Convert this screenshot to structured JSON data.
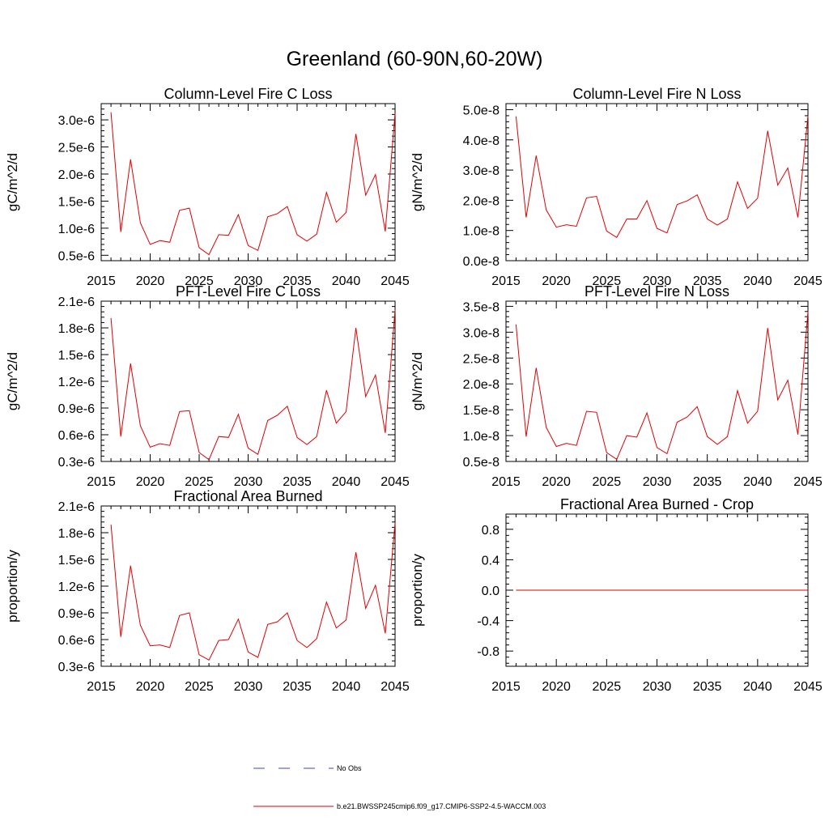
{
  "page_title": "Greenland (60-90N,60-20W)",
  "legend": {
    "obs_label": "No Obs",
    "obs_color": "#3b4a9e",
    "model_label": "b.e21.BWSSP245cmip6.f09_g17.CMIP6-SSP2-4.5-WACCM.003",
    "model_color": "#e00000"
  },
  "chart_data": [
    {
      "type": "line",
      "title": "Column-Level Fire C Loss",
      "xlabel": "",
      "ylabel": "gC/m^2/d",
      "xlim": [
        2015,
        2045
      ],
      "ylim": [
        4e-07,
        3.3e-06
      ],
      "xticks": [
        2015,
        2020,
        2025,
        2030,
        2035,
        2040,
        2045
      ],
      "xtick_labels": [
        "2015",
        "2020",
        "2025",
        "2030",
        "2035",
        "2040",
        "2045"
      ],
      "yticks": [
        5e-07,
        1e-06,
        1.5e-06,
        2e-06,
        2.5e-06,
        3e-06
      ],
      "ytick_labels": [
        "0.5e-6",
        "1.0e-6",
        "1.5e-6",
        "2.0e-6",
        "2.5e-6",
        "3.0e-6"
      ],
      "series": [
        {
          "name": "b.e21.BWSSP245cmip6.f09_g17.CMIP6-SSP2-4.5-WACCM.003",
          "x": [
            2016,
            2017,
            2018,
            2019,
            2020,
            2021,
            2022,
            2023,
            2024,
            2025,
            2026,
            2027,
            2028,
            2029,
            2030,
            2031,
            2032,
            2033,
            2034,
            2035,
            2036,
            2037,
            2038,
            2039,
            2040,
            2041,
            2042,
            2043,
            2044,
            2045
          ],
          "values": [
            3.14e-06,
            9.3e-07,
            2.27e-06,
            1.1e-06,
            7e-07,
            7.7e-07,
            7.4e-07,
            1.33e-06,
            1.37e-06,
            6.4e-07,
            5.1e-07,
            8.8e-07,
            8.7e-07,
            1.25e-06,
            6.8e-07,
            5.9e-07,
            1.21e-06,
            1.27e-06,
            1.4e-06,
            8.8e-07,
            7.6e-07,
            8.9e-07,
            1.66e-06,
            1.11e-06,
            1.29e-06,
            2.74e-06,
            1.61e-06,
            1.99e-06,
            9.4e-07,
            3.12e-06
          ]
        }
      ]
    },
    {
      "type": "line",
      "title": "Column-Level Fire N Loss",
      "xlabel": "",
      "ylabel": "gN/m^2/d",
      "xlim": [
        2015,
        2045
      ],
      "ylim": [
        0.0,
        5.2e-08
      ],
      "xticks": [
        2015,
        2020,
        2025,
        2030,
        2035,
        2040,
        2045
      ],
      "xtick_labels": [
        "2015",
        "2020",
        "2025",
        "2030",
        "2035",
        "2040",
        "2045"
      ],
      "yticks": [
        0.0,
        1e-08,
        2e-08,
        3e-08,
        4e-08,
        5e-08
      ],
      "ytick_labels": [
        "0.0e-8",
        "1.0e-8",
        "2.0e-8",
        "3.0e-8",
        "4.0e-8",
        "5.0e-8"
      ],
      "series": [
        {
          "name": "b.e21.BWSSP245cmip6.f09_g17.CMIP6-SSP2-4.5-WACCM.003",
          "x": [
            2016,
            2017,
            2018,
            2019,
            2020,
            2021,
            2022,
            2023,
            2024,
            2025,
            2026,
            2027,
            2028,
            2029,
            2030,
            2031,
            2032,
            2033,
            2034,
            2035,
            2036,
            2037,
            2038,
            2039,
            2040,
            2041,
            2042,
            2043,
            2044,
            2045
          ],
          "values": [
            4.78e-08,
            1.43e-08,
            3.48e-08,
            1.68e-08,
            1.11e-08,
            1.19e-08,
            1.14e-08,
            2.08e-08,
            2.13e-08,
            9.8e-09,
            7.7e-09,
            1.38e-08,
            1.38e-08,
            1.99e-08,
            1.07e-08,
            9.2e-09,
            1.86e-08,
            1.98e-08,
            2.18e-08,
            1.38e-08,
            1.18e-08,
            1.38e-08,
            2.61e-08,
            1.73e-08,
            2.07e-08,
            4.3e-08,
            2.5e-08,
            3.07e-08,
            1.43e-08,
            4.8e-08
          ]
        }
      ]
    },
    {
      "type": "line",
      "title": "PFT-Level Fire C Loss",
      "xlabel": "",
      "ylabel": "gC/m^2/d",
      "xlim": [
        2015,
        2045
      ],
      "ylim": [
        3e-07,
        2.1e-06
      ],
      "xticks": [
        2015,
        2020,
        2025,
        2030,
        2035,
        2040,
        2045
      ],
      "xtick_labels": [
        "2015",
        "2020",
        "2025",
        "2030",
        "2035",
        "2040",
        "2045"
      ],
      "yticks": [
        3e-07,
        6e-07,
        9e-07,
        1.2e-06,
        1.5e-06,
        1.8e-06,
        2.1e-06
      ],
      "ytick_labels": [
        "0.3e-6",
        "0.6e-6",
        "0.9e-6",
        "1.2e-6",
        "1.5e-6",
        "1.8e-6",
        "2.1e-6"
      ],
      "series": [
        {
          "name": "b.e21.BWSSP245cmip6.f09_g17.CMIP6-SSP2-4.5-WACCM.003",
          "x": [
            2016,
            2017,
            2018,
            2019,
            2020,
            2021,
            2022,
            2023,
            2024,
            2025,
            2026,
            2027,
            2028,
            2029,
            2030,
            2031,
            2032,
            2033,
            2034,
            2035,
            2036,
            2037,
            2038,
            2039,
            2040,
            2041,
            2042,
            2043,
            2044,
            2045
          ],
          "values": [
            1.91e-06,
            5.8e-07,
            1.4e-06,
            7e-07,
            4.6e-07,
            5e-07,
            4.8e-07,
            8.6e-07,
            8.7e-07,
            4e-07,
            3.2e-07,
            5.8e-07,
            5.7e-07,
            8.3e-07,
            4.5e-07,
            3.8e-07,
            7.6e-07,
            8.2e-07,
            9.2e-07,
            5.7e-07,
            4.9e-07,
            5.8e-07,
            1.1e-06,
            7.3e-07,
            8.6e-07,
            1.8e-06,
            1.03e-06,
            1.27e-06,
            6.2e-07,
            2e-06
          ]
        }
      ]
    },
    {
      "type": "line",
      "title": "PFT-Level Fire N Loss",
      "xlabel": "",
      "ylabel": "gN/m^2/d",
      "xlim": [
        2015,
        2045
      ],
      "ylim": [
        5e-09,
        3.6e-08
      ],
      "xticks": [
        2015,
        2020,
        2025,
        2030,
        2035,
        2040,
        2045
      ],
      "xtick_labels": [
        "2015",
        "2020",
        "2025",
        "2030",
        "2035",
        "2040",
        "2045"
      ],
      "yticks": [
        5e-09,
        1e-08,
        1.5e-08,
        2e-08,
        2.5e-08,
        3e-08,
        3.5e-08
      ],
      "ytick_labels": [
        "0.5e-8",
        "1.0e-8",
        "1.5e-8",
        "2.0e-8",
        "2.5e-8",
        "3.0e-8",
        "3.5e-8"
      ],
      "series": [
        {
          "name": "b.e21.BWSSP245cmip6.f09_g17.CMIP6-SSP2-4.5-WACCM.003",
          "x": [
            2016,
            2017,
            2018,
            2019,
            2020,
            2021,
            2022,
            2023,
            2024,
            2025,
            2026,
            2027,
            2028,
            2029,
            2030,
            2031,
            2032,
            2033,
            2034,
            2035,
            2036,
            2037,
            2038,
            2039,
            2040,
            2041,
            2042,
            2043,
            2044,
            2045
          ],
          "values": [
            3.15e-08,
            9.8e-09,
            2.31e-08,
            1.16e-08,
            7.9e-09,
            8.5e-09,
            8.1e-09,
            1.47e-08,
            1.45e-08,
            6.7e-09,
            5.4e-09,
            1e-08,
            9.7e-09,
            1.44e-08,
            7.7e-09,
            6.5e-09,
            1.26e-08,
            1.36e-08,
            1.56e-08,
            9.8e-09,
            8.3e-09,
            9.8e-09,
            1.87e-08,
            1.24e-08,
            1.47e-08,
            3.08e-08,
            1.69e-08,
            2.07e-08,
            1.02e-08,
            3.4e-08
          ]
        }
      ]
    },
    {
      "type": "line",
      "title": "Fractional Area Burned",
      "xlabel": "",
      "ylabel": "proportion/y",
      "xlim": [
        2015,
        2045
      ],
      "ylim": [
        3e-07,
        2.1e-06
      ],
      "xticks": [
        2015,
        2020,
        2025,
        2030,
        2035,
        2040,
        2045
      ],
      "xtick_labels": [
        "2015",
        "2020",
        "2025",
        "2030",
        "2035",
        "2040",
        "2045"
      ],
      "yticks": [
        3e-07,
        6e-07,
        9e-07,
        1.2e-06,
        1.5e-06,
        1.8e-06,
        2.1e-06
      ],
      "ytick_labels": [
        "0.3e-6",
        "0.6e-6",
        "0.9e-6",
        "1.2e-6",
        "1.5e-6",
        "1.8e-6",
        "2.1e-6"
      ],
      "series": [
        {
          "name": "b.e21.BWSSP245cmip6.f09_g17.CMIP6-SSP2-4.5-WACCM.003",
          "x": [
            2016,
            2017,
            2018,
            2019,
            2020,
            2021,
            2022,
            2023,
            2024,
            2025,
            2026,
            2027,
            2028,
            2029,
            2030,
            2031,
            2032,
            2033,
            2034,
            2035,
            2036,
            2037,
            2038,
            2039,
            2040,
            2041,
            2042,
            2043,
            2044,
            2045
          ],
          "values": [
            1.89e-06,
            6.3e-07,
            1.43e-06,
            7.6e-07,
            5.3e-07,
            5.4e-07,
            5.1e-07,
            8.7e-07,
            9e-07,
            4.3e-07,
            3.7e-07,
            5.9e-07,
            6e-07,
            8.3e-07,
            4.6e-07,
            4e-07,
            7.7e-07,
            8e-07,
            9e-07,
            5.9e-07,
            5.1e-07,
            6.1e-07,
            1.02e-06,
            7.3e-07,
            8.2e-07,
            1.58e-06,
            9.5e-07,
            1.21e-06,
            6.7e-07,
            1.91e-06
          ]
        }
      ]
    },
    {
      "type": "line",
      "title": "Fractional Area Burned - Crop",
      "xlabel": "",
      "ylabel": "proportion/y",
      "xlim": [
        2015,
        2045
      ],
      "ylim": [
        -1.0,
        1.0
      ],
      "xticks": [
        2015,
        2020,
        2025,
        2030,
        2035,
        2040,
        2045
      ],
      "xtick_labels": [
        "2015",
        "2020",
        "2025",
        "2030",
        "2035",
        "2040",
        "2045"
      ],
      "yticks": [
        -0.8,
        -0.4,
        0.0,
        0.4,
        0.8
      ],
      "ytick_labels": [
        "-0.8",
        "-0.4",
        "0.0",
        "0.4",
        "0.8"
      ],
      "series": [
        {
          "name": "b.e21.BWSSP245cmip6.f09_g17.CMIP6-SSP2-4.5-WACCM.003",
          "x": [
            2016,
            2017,
            2018,
            2019,
            2020,
            2021,
            2022,
            2023,
            2024,
            2025,
            2026,
            2027,
            2028,
            2029,
            2030,
            2031,
            2032,
            2033,
            2034,
            2035,
            2036,
            2037,
            2038,
            2039,
            2040,
            2041,
            2042,
            2043,
            2044,
            2045
          ],
          "values": [
            0,
            0,
            0,
            0,
            0,
            0,
            0,
            0,
            0,
            0,
            0,
            0,
            0,
            0,
            0,
            0,
            0,
            0,
            0,
            0,
            0,
            0,
            0,
            0,
            0,
            0,
            0,
            0,
            0,
            0
          ]
        }
      ]
    }
  ]
}
